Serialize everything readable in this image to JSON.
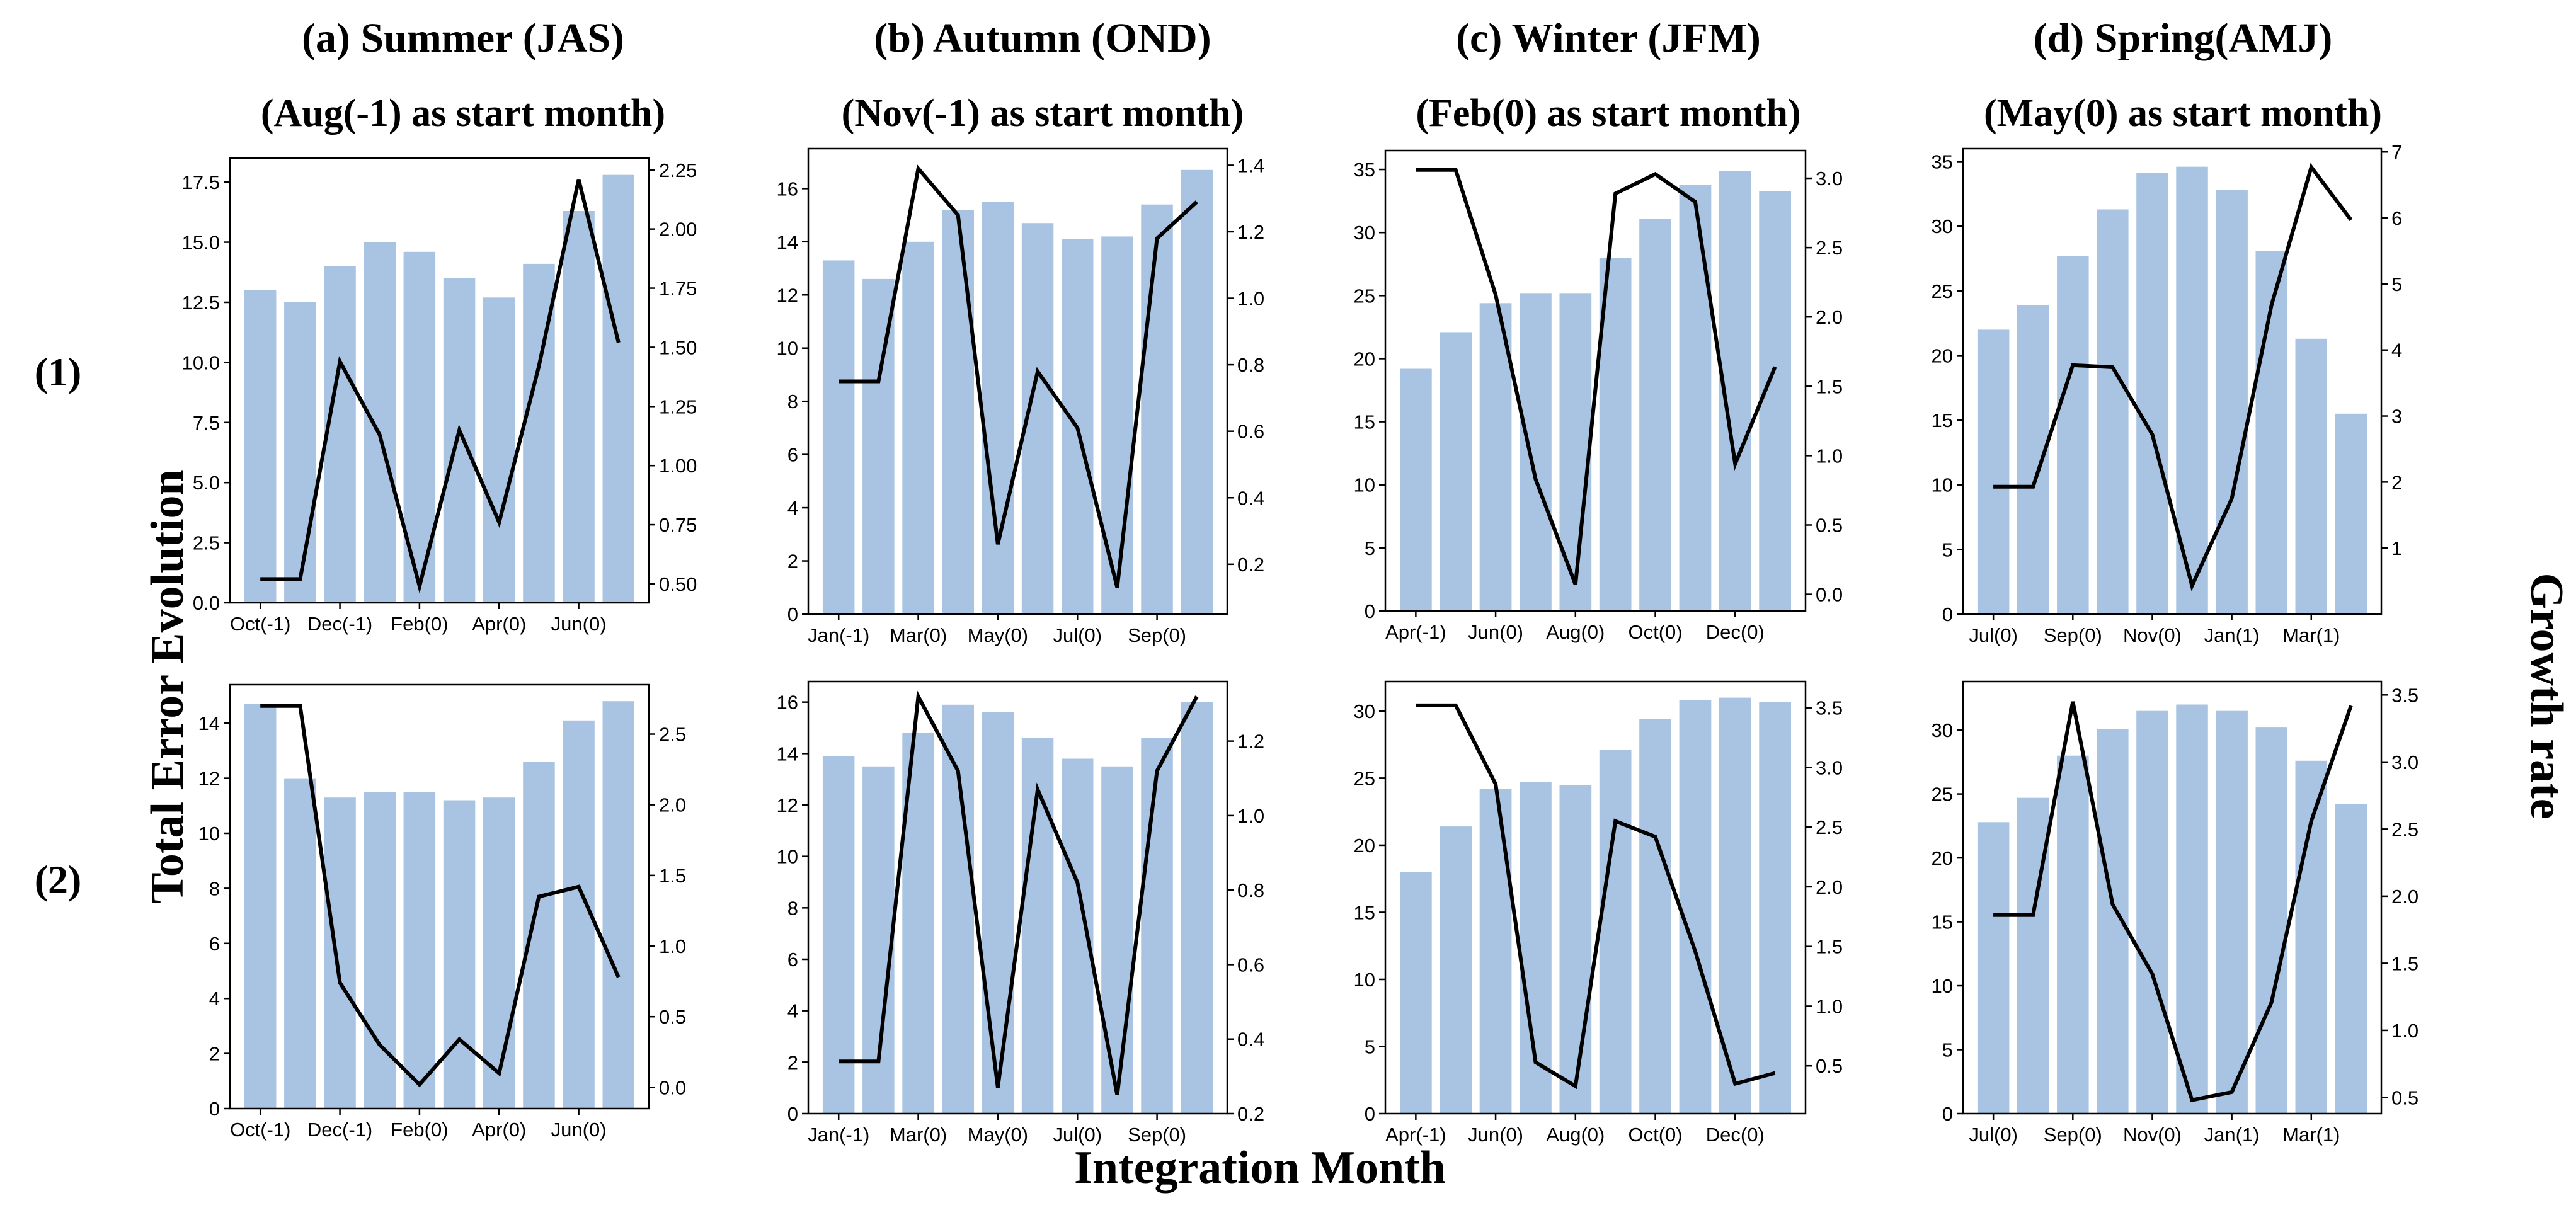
{
  "figure": {
    "ylabel": "Total Error Evolution",
    "y2label": "Growth rate",
    "xlabel": "Integration Month",
    "rows": [
      "(1)",
      "(2)"
    ],
    "columns": [
      {
        "title": "(a) Summer (JAS)",
        "subtitle": "(Aug(-1) as start month)"
      },
      {
        "title": "(b) Autumn (OND)",
        "subtitle": "(Nov(-1) as start month)"
      },
      {
        "title": "(c) Winter (JFM)",
        "subtitle": "(Feb(0) as start month)"
      },
      {
        "title": "(d) Spring(AMJ)",
        "subtitle": "(May(0) as start month)"
      }
    ]
  },
  "colors": {
    "bar": "#a8c4e2",
    "line": "#000000"
  },
  "chart_data": [
    {
      "id": "a1",
      "type": "bar+line",
      "row": "(1)",
      "column": "(a) Summer (JAS)",
      "xticks": [
        "Oct(-1)",
        "Dec(-1)",
        "Feb(0)",
        "Apr(0)",
        "Jun(0)"
      ],
      "bar_values": [
        13.0,
        12.5,
        14.0,
        15.0,
        14.6,
        13.5,
        12.7,
        14.1,
        16.3,
        17.8
      ],
      "line_values": [
        0.52,
        0.52,
        1.44,
        1.13,
        0.49,
        1.15,
        0.76,
        1.42,
        2.21,
        1.52
      ],
      "ylim": [
        0,
        18.5
      ],
      "y_ticks": [
        0,
        2.5,
        5.0,
        7.5,
        10.0,
        12.5,
        15.0,
        17.5
      ],
      "y2lim": [
        0.42,
        2.3
      ],
      "y2_ticks": [
        0.5,
        0.75,
        1.0,
        1.25,
        1.5,
        1.75,
        2.0,
        2.25
      ]
    },
    {
      "id": "b1",
      "type": "bar+line",
      "row": "(1)",
      "column": "(b) Autumn (OND)",
      "xticks": [
        "Jan(-1)",
        "Mar(0)",
        "May(0)",
        "Jul(0)",
        "Sep(0)"
      ],
      "bar_values": [
        13.3,
        12.6,
        14.0,
        15.2,
        15.5,
        14.7,
        14.1,
        14.2,
        15.4,
        16.7
      ],
      "line_values": [
        0.75,
        0.75,
        1.39,
        1.25,
        0.26,
        0.78,
        0.61,
        0.13,
        1.18,
        1.29
      ],
      "ylim": [
        0,
        17.5
      ],
      "y_ticks": [
        0,
        2,
        4,
        6,
        8,
        10,
        12,
        14,
        16
      ],
      "y2lim": [
        0.05,
        1.45
      ],
      "y2_ticks": [
        0.2,
        0.4,
        0.6,
        0.8,
        1.0,
        1.2,
        1.4
      ]
    },
    {
      "id": "c1",
      "type": "bar+line",
      "row": "(1)",
      "column": "(c) Winter (JFM)",
      "xticks": [
        "Apr(-1)",
        "Jun(0)",
        "Aug(0)",
        "Oct(0)",
        "Dec(0)"
      ],
      "bar_values": [
        19.2,
        22.1,
        24.4,
        25.2,
        25.2,
        28.0,
        31.1,
        33.8,
        34.9,
        33.3
      ],
      "line_values": [
        3.06,
        3.06,
        2.16,
        0.83,
        0.07,
        2.89,
        3.03,
        2.83,
        0.94,
        1.64
      ],
      "ylim": [
        0,
        36.5
      ],
      "y_ticks": [
        0,
        5,
        10,
        15,
        20,
        25,
        30,
        35
      ],
      "y2lim": [
        -0.12,
        3.2
      ],
      "y2_ticks": [
        0.0,
        0.5,
        1.0,
        1.5,
        2.0,
        2.5,
        3.0
      ]
    },
    {
      "id": "d1",
      "type": "bar+line",
      "row": "(1)",
      "column": "(d) Spring(AMJ)",
      "xticks": [
        "Jul(0)",
        "Sep(0)",
        "Nov(0)",
        "Jan(1)",
        "Mar(1)"
      ],
      "bar_values": [
        22.0,
        23.9,
        27.7,
        31.3,
        34.1,
        34.6,
        32.8,
        28.1,
        21.3,
        15.5
      ],
      "line_values": [
        1.93,
        1.93,
        3.77,
        3.74,
        2.72,
        0.43,
        1.75,
        4.68,
        6.77,
        5.97
      ],
      "ylim": [
        0,
        36
      ],
      "y_ticks": [
        0,
        5,
        10,
        15,
        20,
        25,
        30,
        35
      ],
      "y2lim": [
        0,
        7.05
      ],
      "y2_ticks": [
        1,
        2,
        3,
        4,
        5,
        6,
        7
      ]
    },
    {
      "id": "a2",
      "type": "bar+line",
      "row": "(2)",
      "column": "(a) Summer (JAS)",
      "xticks": [
        "Oct(-1)",
        "Dec(-1)",
        "Feb(0)",
        "Apr(0)",
        "Jun(0)"
      ],
      "bar_values": [
        14.7,
        12.0,
        11.3,
        11.5,
        11.5,
        11.2,
        11.3,
        12.6,
        14.1,
        14.8
      ],
      "line_values": [
        2.7,
        2.7,
        0.74,
        0.3,
        0.02,
        0.34,
        0.1,
        1.35,
        1.42,
        0.78
      ],
      "ylim": [
        0,
        15.4
      ],
      "y_ticks": [
        0,
        2,
        4,
        6,
        8,
        10,
        12,
        14
      ],
      "y2lim": [
        -0.15,
        2.85
      ],
      "y2_ticks": [
        0.0,
        0.5,
        1.0,
        1.5,
        2.0,
        2.5
      ]
    },
    {
      "id": "b2",
      "type": "bar+line",
      "row": "(2)",
      "column": "(b) Autumn (OND)",
      "xticks": [
        "Jan(-1)",
        "Mar(0)",
        "May(0)",
        "Jul(0)",
        "Sep(0)"
      ],
      "bar_values": [
        13.9,
        13.5,
        14.8,
        15.9,
        15.6,
        14.6,
        13.8,
        13.5,
        14.6,
        16.0
      ],
      "line_values": [
        0.34,
        0.34,
        1.32,
        1.12,
        0.27,
        1.07,
        0.82,
        0.25,
        1.12,
        1.32
      ],
      "ylim": [
        0,
        16.8
      ],
      "y_ticks": [
        0,
        2,
        4,
        6,
        8,
        10,
        12,
        14,
        16
      ],
      "y2lim": [
        0.2,
        1.36
      ],
      "y2_ticks": [
        0.2,
        0.4,
        0.6,
        0.8,
        1.0,
        1.2
      ]
    },
    {
      "id": "c2",
      "type": "bar+line",
      "row": "(2)",
      "column": "(c) Winter (JFM)",
      "xticks": [
        "Apr(-1)",
        "Jun(0)",
        "Aug(0)",
        "Oct(0)",
        "Dec(0)"
      ],
      "bar_values": [
        18.0,
        21.4,
        24.2,
        24.7,
        24.5,
        27.1,
        29.4,
        30.8,
        31.0,
        30.7
      ],
      "line_values": [
        3.52,
        3.52,
        2.86,
        0.53,
        0.33,
        2.55,
        2.42,
        1.46,
        0.35,
        0.44
      ],
      "ylim": [
        0,
        32.2
      ],
      "y_ticks": [
        0,
        5,
        10,
        15,
        20,
        25,
        30
      ],
      "y2lim": [
        0.1,
        3.72
      ],
      "y2_ticks": [
        0.5,
        1.0,
        1.5,
        2.0,
        2.5,
        3.0,
        3.5
      ]
    },
    {
      "id": "d2",
      "type": "bar+line",
      "row": "(2)",
      "column": "(d) Spring(AMJ)",
      "xticks": [
        "Jul(0)",
        "Sep(0)",
        "Nov(0)",
        "Jan(1)",
        "Mar(1)"
      ],
      "bar_values": [
        22.8,
        24.7,
        28.0,
        30.1,
        31.5,
        32.0,
        31.5,
        30.2,
        27.6,
        24.2
      ],
      "line_values": [
        1.86,
        1.86,
        3.45,
        1.94,
        1.42,
        0.48,
        0.54,
        1.21,
        2.56,
        3.42
      ],
      "ylim": [
        0,
        33.8
      ],
      "y_ticks": [
        0,
        5,
        10,
        15,
        20,
        25,
        30
      ],
      "y2lim": [
        0.38,
        3.6
      ],
      "y2_ticks": [
        0.5,
        1.0,
        1.5,
        2.0,
        2.5,
        3.0,
        3.5
      ]
    }
  ]
}
